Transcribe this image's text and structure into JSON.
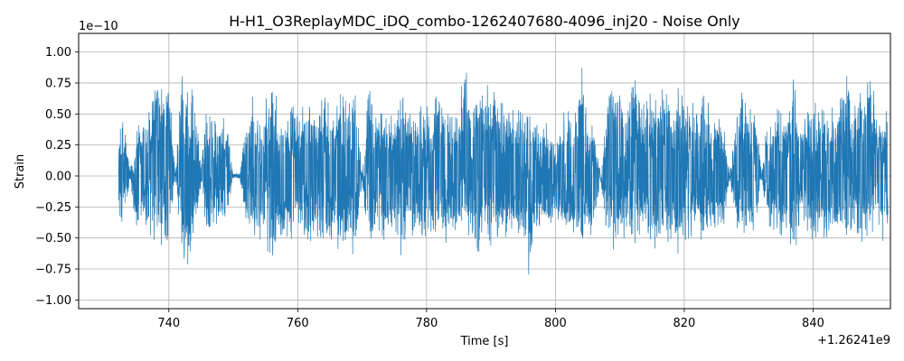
{
  "chart_data": {
    "type": "line",
    "title": "H-H1_O3ReplayMDC_iDQ_combo-1262407680-4096_inj20 - Noise Only",
    "xlabel": "Time [s]",
    "ylabel": "Strain",
    "x_offset_label": "+1.26241e9",
    "y_scale_label": "1e−10",
    "x_ticks": [
      740,
      760,
      780,
      800,
      820,
      840
    ],
    "x_tick_labels": [
      "740",
      "760",
      "780",
      "800",
      "820",
      "840"
    ],
    "y_ticks": [
      -1.0,
      -0.75,
      -0.5,
      -0.25,
      0.0,
      0.25,
      0.5,
      0.75,
      1.0
    ],
    "y_tick_labels": [
      "−1.00",
      "−0.75",
      "−0.50",
      "−0.25",
      "0.00",
      "0.25",
      "0.50",
      "0.75",
      "1.00"
    ],
    "xlim": [
      726,
      852
    ],
    "ylim": [
      -1.07,
      1.15
    ],
    "grid": true,
    "series": [
      {
        "color": "#1f77b4",
        "x_start": 732.2,
        "x_end": 851.6,
        "envelope_x": [
          732,
          733,
          734,
          735,
          736,
          737,
          738,
          739,
          740,
          741,
          742,
          743,
          744,
          745,
          746,
          747,
          748,
          749,
          750,
          751,
          752,
          753,
          754,
          755,
          756,
          757,
          758,
          759,
          760,
          761,
          762,
          763,
          764,
          765,
          766,
          767,
          768,
          769,
          770,
          771,
          772,
          773,
          774,
          775,
          776,
          777,
          778,
          779,
          780,
          781,
          782,
          783,
          784,
          785,
          786,
          787,
          788,
          789,
          790,
          791,
          792,
          793,
          794,
          795,
          796,
          797,
          798,
          799,
          800,
          801,
          802,
          803,
          804,
          805,
          806,
          807,
          808,
          809,
          810,
          811,
          812,
          813,
          814,
          815,
          816,
          817,
          818,
          819,
          820,
          821,
          822,
          823,
          824,
          825,
          826,
          827,
          828,
          829,
          830,
          831,
          832,
          833,
          834,
          835,
          836,
          837,
          838,
          839,
          840,
          841,
          842,
          843,
          844,
          845,
          846,
          847,
          848,
          849,
          850,
          851
        ],
        "envelope_upper": [
          0.35,
          0.55,
          0.05,
          0.45,
          0.55,
          0.6,
          0.95,
          0.75,
          0.85,
          0.02,
          0.95,
          0.8,
          0.65,
          0.1,
          0.7,
          0.55,
          0.5,
          0.45,
          0.03,
          0.02,
          0.55,
          0.65,
          0.55,
          0.6,
          0.9,
          0.55,
          0.6,
          0.65,
          0.55,
          0.6,
          0.75,
          0.55,
          0.8,
          0.65,
          0.6,
          0.75,
          0.7,
          0.85,
          0.02,
          0.8,
          0.6,
          0.65,
          0.5,
          0.55,
          0.8,
          0.6,
          0.55,
          0.65,
          0.6,
          0.6,
          0.85,
          0.6,
          0.55,
          0.6,
          0.95,
          0.55,
          0.85,
          0.75,
          0.85,
          0.65,
          0.7,
          0.6,
          0.65,
          0.6,
          0.6,
          0.45,
          0.5,
          0.45,
          0.35,
          0.5,
          0.55,
          0.6,
          1.0,
          0.55,
          0.45,
          0.03,
          0.6,
          0.85,
          0.75,
          0.55,
          0.9,
          0.7,
          0.6,
          0.8,
          0.75,
          0.8,
          0.6,
          0.85,
          0.65,
          0.65,
          0.55,
          0.8,
          0.55,
          0.5,
          0.6,
          0.02,
          0.5,
          0.85,
          0.55,
          0.65,
          0.02,
          0.55,
          0.5,
          0.65,
          0.5,
          0.85,
          0.45,
          0.55,
          0.6,
          0.65,
          0.5,
          0.6,
          0.6,
          0.95,
          0.55,
          0.8,
          0.75,
          0.8,
          0.55,
          0.6
        ],
        "envelope_lower": [
          -0.35,
          -0.45,
          -0.05,
          -0.55,
          -0.5,
          -0.6,
          -0.75,
          -0.7,
          -0.6,
          -0.02,
          -0.75,
          -0.9,
          -0.55,
          -0.1,
          -0.6,
          -0.5,
          -0.45,
          -0.4,
          -0.03,
          -0.02,
          -0.45,
          -0.6,
          -0.55,
          -0.5,
          -0.88,
          -0.5,
          -0.55,
          -0.6,
          -0.5,
          -0.55,
          -0.65,
          -0.5,
          -0.6,
          -0.55,
          -0.6,
          -0.65,
          -0.55,
          -0.75,
          -0.02,
          -0.7,
          -0.55,
          -0.6,
          -0.5,
          -0.5,
          -0.7,
          -0.5,
          -0.55,
          -0.6,
          -0.55,
          -0.55,
          -0.6,
          -0.55,
          -0.5,
          -0.55,
          -0.6,
          -0.5,
          -0.8,
          -0.55,
          -0.65,
          -0.55,
          -0.6,
          -0.55,
          -0.6,
          -0.55,
          -0.95,
          -0.5,
          -0.45,
          -0.45,
          -0.35,
          -0.5,
          -0.55,
          -0.55,
          -0.7,
          -0.55,
          -0.45,
          -0.03,
          -0.55,
          -0.65,
          -0.6,
          -0.5,
          -0.7,
          -0.6,
          -0.55,
          -0.75,
          -0.65,
          -0.6,
          -0.55,
          -0.78,
          -0.55,
          -0.6,
          -0.5,
          -0.65,
          -0.5,
          -0.45,
          -0.5,
          -0.02,
          -0.45,
          -0.6,
          -0.5,
          -0.55,
          -0.02,
          -0.5,
          -0.45,
          -0.55,
          -0.5,
          -0.8,
          -0.45,
          -0.5,
          -0.55,
          -0.55,
          -0.5,
          -0.55,
          -0.55,
          -0.65,
          -0.5,
          -0.6,
          -0.55,
          -0.6,
          -0.5,
          -0.55
        ]
      }
    ]
  }
}
